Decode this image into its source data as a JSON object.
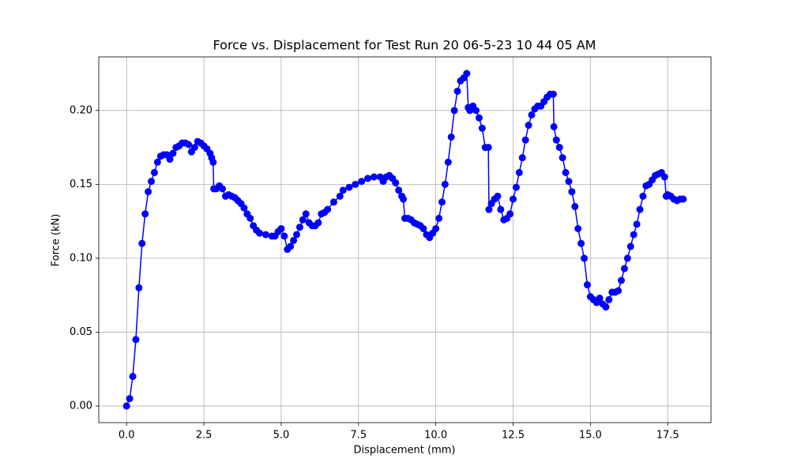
{
  "chart_data": {
    "type": "line",
    "title": "Force vs. Displacement for Test Run 20 06-5-23 10 44 05 AM",
    "x_label": "Displacement (mm)",
    "y_label": "Force (kN)",
    "x": [
      0,
      0.1,
      0.2,
      0.3,
      0.4,
      0.5,
      0.6,
      0.7,
      0.8,
      0.9,
      1.0,
      1.1,
      1.2,
      1.3,
      1.4,
      1.5,
      1.6,
      1.7,
      1.8,
      1.9,
      2.0,
      2.1,
      2.2,
      2.3,
      2.4,
      2.5,
      2.6,
      2.7,
      2.75,
      2.8,
      2.82,
      2.9,
      3.0,
      3.1,
      3.2,
      3.3,
      3.4,
      3.5,
      3.6,
      3.7,
      3.8,
      3.9,
      4.0,
      4.1,
      4.2,
      4.3,
      4.5,
      4.7,
      4.8,
      4.9,
      5.0,
      5.1,
      5.2,
      5.3,
      5.4,
      5.5,
      5.6,
      5.7,
      5.8,
      5.9,
      6.0,
      6.1,
      6.2,
      6.3,
      6.4,
      6.5,
      6.7,
      6.9,
      7.0,
      7.2,
      7.4,
      7.6,
      7.8,
      8.0,
      8.2,
      8.3,
      8.4,
      8.5,
      8.6,
      8.7,
      8.8,
      8.9,
      8.95,
      9.0,
      9.1,
      9.2,
      9.3,
      9.4,
      9.5,
      9.6,
      9.7,
      9.8,
      9.9,
      10.0,
      10.1,
      10.2,
      10.3,
      10.4,
      10.5,
      10.6,
      10.7,
      10.8,
      10.9,
      11.0,
      11.05,
      11.1,
      11.2,
      11.3,
      11.4,
      11.5,
      11.6,
      11.7,
      11.72,
      11.8,
      11.9,
      12.0,
      12.1,
      12.2,
      12.3,
      12.4,
      12.5,
      12.6,
      12.7,
      12.8,
      12.9,
      13.0,
      13.1,
      13.2,
      13.3,
      13.4,
      13.5,
      13.6,
      13.7,
      13.8,
      13.82,
      13.9,
      14.0,
      14.1,
      14.2,
      14.3,
      14.4,
      14.5,
      14.6,
      14.7,
      14.8,
      14.9,
      15.0,
      15.1,
      15.2,
      15.3,
      15.4,
      15.5,
      15.6,
      15.7,
      15.8,
      15.9,
      16.0,
      16.1,
      16.2,
      16.3,
      16.4,
      16.5,
      16.6,
      16.7,
      16.8,
      16.9,
      17.0,
      17.1,
      17.2,
      17.3,
      17.4,
      17.45,
      17.5,
      17.6,
      17.7,
      17.8,
      17.9,
      18.0
    ],
    "values": [
      0,
      0.005,
      0.02,
      0.045,
      0.08,
      0.11,
      0.13,
      0.145,
      0.152,
      0.158,
      0.165,
      0.169,
      0.17,
      0.17,
      0.167,
      0.171,
      0.175,
      0.176,
      0.178,
      0.178,
      0.177,
      0.172,
      0.175,
      0.179,
      0.178,
      0.176,
      0.174,
      0.171,
      0.168,
      0.165,
      0.147,
      0.147,
      0.149,
      0.147,
      0.142,
      0.143,
      0.142,
      0.141,
      0.139,
      0.137,
      0.134,
      0.13,
      0.127,
      0.122,
      0.119,
      0.117,
      0.116,
      0.115,
      0.115,
      0.118,
      0.12,
      0.115,
      0.106,
      0.108,
      0.112,
      0.116,
      0.121,
      0.126,
      0.13,
      0.124,
      0.122,
      0.122,
      0.124,
      0.13,
      0.131,
      0.133,
      0.138,
      0.142,
      0.146,
      0.148,
      0.15,
      0.152,
      0.154,
      0.155,
      0.155,
      0.152,
      0.155,
      0.156,
      0.154,
      0.151,
      0.146,
      0.142,
      0.14,
      0.127,
      0.127,
      0.126,
      0.124,
      0.123,
      0.122,
      0.12,
      0.116,
      0.114,
      0.117,
      0.12,
      0.127,
      0.138,
      0.15,
      0.165,
      0.182,
      0.2,
      0.213,
      0.22,
      0.222,
      0.225,
      0.202,
      0.2,
      0.203,
      0.2,
      0.195,
      0.188,
      0.175,
      0.175,
      0.133,
      0.137,
      0.14,
      0.142,
      0.133,
      0.126,
      0.127,
      0.13,
      0.14,
      0.148,
      0.158,
      0.168,
      0.18,
      0.19,
      0.197,
      0.201,
      0.203,
      0.203,
      0.206,
      0.209,
      0.211,
      0.211,
      0.189,
      0.18,
      0.175,
      0.168,
      0.158,
      0.152,
      0.145,
      0.135,
      0.12,
      0.11,
      0.1,
      0.082,
      0.074,
      0.072,
      0.07,
      0.073,
      0.069,
      0.067,
      0.072,
      0.077,
      0.077,
      0.078,
      0.085,
      0.093,
      0.1,
      0.108,
      0.116,
      0.123,
      0.133,
      0.142,
      0.149,
      0.15,
      0.153,
      0.156,
      0.157,
      0.158,
      0.155,
      0.142,
      0.143,
      0.142,
      0.14,
      0.139,
      0.14,
      0.14
    ],
    "color": "#0000ff",
    "marker": "o",
    "xlim": [
      -0.9,
      18.9
    ],
    "xticks": [
      {
        "value": 0,
        "label": "0.0"
      },
      2.5,
      {
        "value": 5,
        "label": "5.0"
      },
      7.5,
      {
        "value": 10,
        "label": "10.0"
      },
      12.5,
      {
        "value": 15,
        "label": "15.0"
      },
      17.5
    ],
    "ylim": [
      -0.01125,
      0.23625
    ],
    "yticks": [
      {
        "value": 0,
        "label": "0.00"
      },
      0.05,
      {
        "value": 0.1,
        "label": "0.10"
      },
      0.15,
      {
        "value": 0.2,
        "label": "0.20"
      }
    ],
    "grid": true
  }
}
